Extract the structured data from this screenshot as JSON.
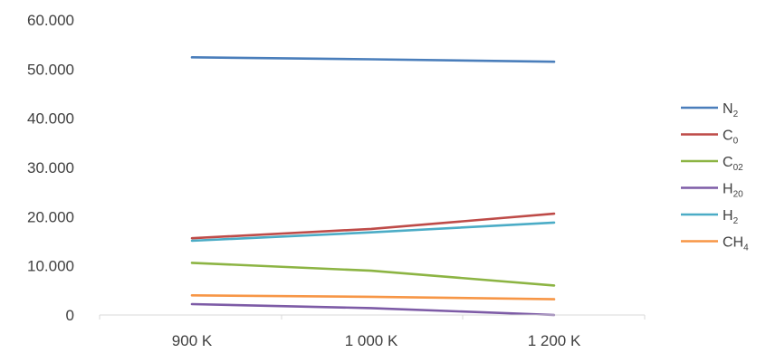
{
  "chart_data": {
    "type": "line",
    "title": "",
    "xlabel": "",
    "ylabel": "",
    "categories": [
      "900 K",
      "1 000 K",
      "1 200 K"
    ],
    "yticks": [
      "0",
      "10.000",
      "20.000",
      "30.000",
      "40.000",
      "50.000",
      "60.000"
    ],
    "ylim": [
      0,
      60
    ],
    "grid": false,
    "legend_position": "right",
    "series": [
      {
        "name": "N",
        "sub": "2",
        "color": "#4a7ebb",
        "values": [
          52.4,
          52.0,
          51.5
        ]
      },
      {
        "name": "C",
        "sub": "0",
        "color": "#be4b48",
        "values": [
          15.6,
          17.5,
          20.6
        ]
      },
      {
        "name": "C",
        "sub": "02",
        "color": "#8cb443",
        "values": [
          10.6,
          9.0,
          6.0
        ]
      },
      {
        "name": "H",
        "sub": "20",
        "color": "#7d5ba6",
        "values": [
          2.2,
          1.4,
          0.0
        ]
      },
      {
        "name": "H",
        "sub": "2",
        "color": "#4bacc6",
        "values": [
          15.1,
          16.8,
          18.8
        ]
      },
      {
        "name": "CH",
        "sub": "4",
        "color": "#f79646",
        "values": [
          4.0,
          3.7,
          3.2
        ]
      }
    ]
  }
}
